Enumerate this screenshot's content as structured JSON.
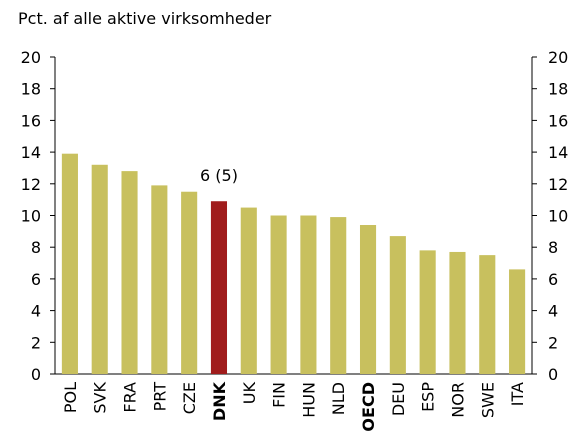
{
  "chart_data": {
    "type": "bar",
    "ylabel": "Pct. af alle aktive virksomheder",
    "categories": [
      "POL",
      "SVK",
      "FRA",
      "PRT",
      "CZE",
      "DNK",
      "UK",
      "FIN",
      "HUN",
      "NLD",
      "OECD",
      "DEU",
      "ESP",
      "NOR",
      "SWE",
      "ITA"
    ],
    "values": [
      13.9,
      13.2,
      12.8,
      11.9,
      11.5,
      10.9,
      10.5,
      10.0,
      10.0,
      9.9,
      9.4,
      8.7,
      7.8,
      7.7,
      7.5,
      6.6
    ],
    "colors": [
      "#c8c05e",
      "#c8c05e",
      "#c8c05e",
      "#c8c05e",
      "#c8c05e",
      "#a01c1c",
      "#c8c05e",
      "#c8c05e",
      "#c8c05e",
      "#c8c05e",
      "#c8c05e",
      "#c8c05e",
      "#c8c05e",
      "#c8c05e",
      "#c8c05e",
      "#c8c05e"
    ],
    "bold_labels": [
      false,
      false,
      false,
      false,
      false,
      true,
      false,
      false,
      false,
      false,
      true,
      false,
      false,
      false,
      false,
      false
    ],
    "annotations": [
      {
        "text": "6 (5)",
        "x": "DNK"
      }
    ],
    "ylim": [
      0,
      20
    ],
    "yticks": [
      0,
      2,
      4,
      6,
      8,
      10,
      12,
      14,
      16,
      18,
      20
    ],
    "y2lim": [
      0,
      20
    ],
    "y2ticks": [
      0,
      2,
      4,
      6,
      8,
      10,
      12,
      14,
      16,
      18,
      20
    ],
    "grid": false
  }
}
